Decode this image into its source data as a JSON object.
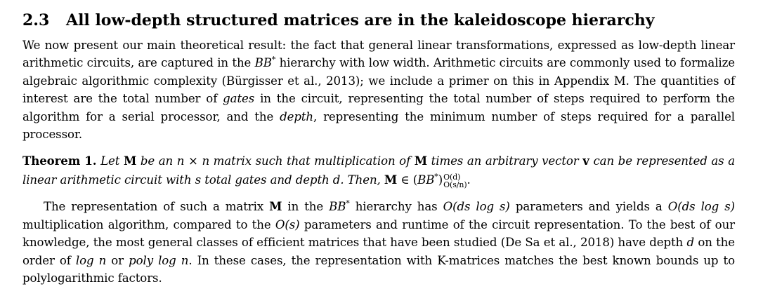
{
  "section": {
    "number": "2.3",
    "title": "All low-depth structured matrices are in the kaleidoscope hierarchy"
  },
  "para1": {
    "t1": "We now present our main theoretical result: the fact that general linear transformations, expressed as low-depth linear arithmetic circuits, are captured in the ",
    "bb": "BB",
    "star": "*",
    "t2": " hierarchy with low width. Arithmetic circuits are commonly used to formalize algebraic algorithmic complexity (Bürgisser et al., 2013); we include a primer on this in Appendix M. The quantities of interest are the total number of ",
    "gates": "gates",
    "t3": " in the circuit, representing the total number of steps required to perform the algorithm for a serial processor, and the ",
    "depth": "depth",
    "t4": ", representing the minimum number of steps required for a parallel processor."
  },
  "theorem": {
    "head": "Theorem 1.",
    "t1": "Let ",
    "M": "M",
    "t2": " be an ",
    "n1": "n",
    "times": " × ",
    "n2": "n",
    "t3": " matrix such that multiplication of ",
    "M2": "M",
    "t4": " times an arbitrary vector ",
    "v": "v",
    "t5": " can be represented as a linear arithmetic circuit with ",
    "s": "s",
    "t6": " total gates and depth ",
    "d": "d",
    "t7": ". Then, ",
    "M3": "M",
    "in": " ∈ (",
    "bb": "BB",
    "star": "*",
    "close": ")",
    "sup": "O(d)",
    "sub": "O(s/n)",
    "end": "."
  },
  "para2": {
    "t1": "The representation of such a matrix ",
    "M": "M",
    "t2": " in the ",
    "bb": "BB",
    "star": "*",
    "t3": " hierarchy has ",
    "m1": "O(ds log s)",
    "t4": " parameters and yields a ",
    "m2": "O(ds log s)",
    "t5": " multiplication algorithm, compared to the ",
    "m3": "O(s)",
    "t6": " parameters and runtime of the circuit representation. To the best of our knowledge, the most general classes of efficient matrices that have been studied (De Sa et al., 2018) have depth ",
    "d": "d",
    "t7": " on the order of ",
    "m4": "log n",
    "t8": " or ",
    "m5": "poly log n",
    "t9": ". In these cases, the representation with K-matrices matches the best known bounds up to polylogarithmic factors."
  }
}
